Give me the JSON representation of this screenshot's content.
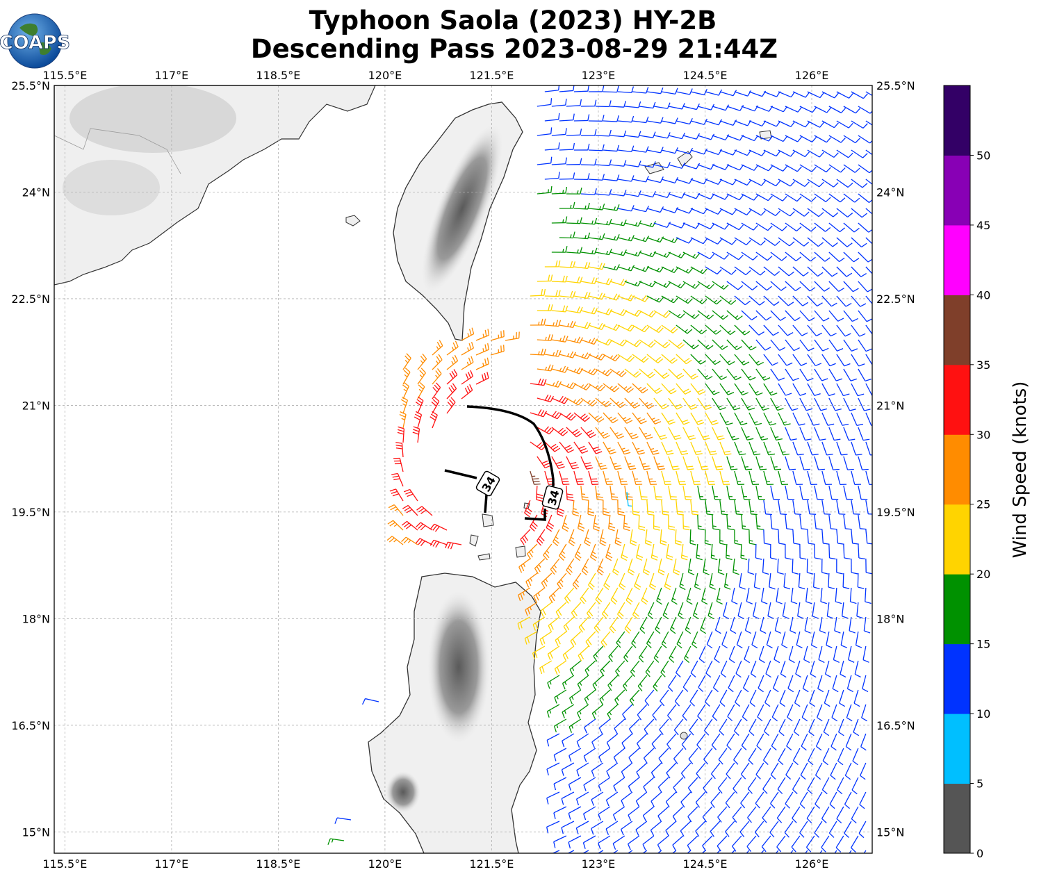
{
  "title": {
    "line1": "Typhoon Saola (2023) HY-2B",
    "line2": "Descending Pass 2023-08-29 21:44Z"
  },
  "logo": {
    "text": "COAPS"
  },
  "map": {
    "lon_ticks": [
      "115.5°E",
      "117°E",
      "118.5°E",
      "120°E",
      "121.5°E",
      "123°E",
      "124.5°E",
      "126°E"
    ],
    "lat_ticks": [
      "25.5°N",
      "24°N",
      "22.5°N",
      "21°N",
      "19.5°N",
      "18°N",
      "16.5°N",
      "15°N"
    ],
    "lon_values": [
      115.5,
      117,
      118.5,
      120,
      121.5,
      123,
      124.5,
      126
    ],
    "lat_values": [
      25.5,
      24,
      22.5,
      21,
      19.5,
      18,
      16.5,
      15
    ],
    "extent": {
      "lon_min": 115.35,
      "lon_max": 126.85,
      "lat_min": 14.7,
      "lat_max": 25.5
    },
    "contour_labels": [
      "34",
      "34"
    ],
    "land_color": "#f2f2f2",
    "coast_color": "#333333"
  },
  "colorbar": {
    "title": "Wind Speed (knots)",
    "tick_labels": [
      "0",
      "5",
      "10",
      "15",
      "20",
      "25",
      "30",
      "35",
      "40",
      "45",
      "50"
    ],
    "colors": [
      "#555555",
      "#00bfff",
      "#0033ff",
      "#009100",
      "#ffd400",
      "#ff8c00",
      "#ff1111",
      "#7f3f2a",
      "#ff00ff",
      "#8800b5",
      "#330066"
    ]
  }
}
